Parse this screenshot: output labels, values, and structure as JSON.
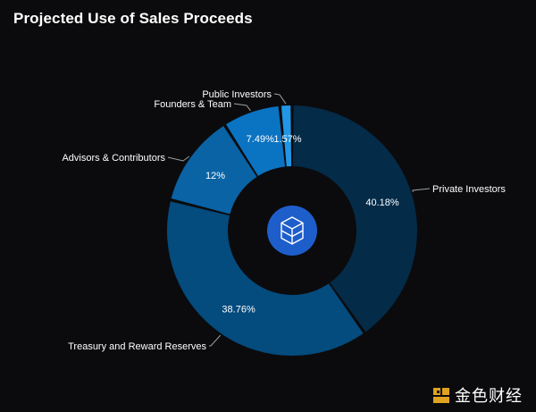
{
  "chart_data": {
    "type": "pie",
    "donut": true,
    "title": "Projected Use of Sales Proceeds",
    "start": "12 o'clock, clockwise",
    "slices": [
      {
        "label": "Private Investors",
        "value": 40.18,
        "value_label": "40.18%",
        "color": "#042b48"
      },
      {
        "label": "Treasury and Reward Reserves",
        "value": 38.76,
        "value_label": "38.76%",
        "color": "#044b7e"
      },
      {
        "label": "Advisors & Contributors",
        "value": 12,
        "value_label": "12%",
        "color": "#0963a5"
      },
      {
        "label": "Founders & Team",
        "value": 7.49,
        "value_label": "7.49%",
        "color": "#0a73c2"
      },
      {
        "label": "Public Investors",
        "value": 1.57,
        "value_label": "1.57%",
        "color": "#2196e6"
      }
    ]
  },
  "center_icon": "fantom-cube-logo-icon",
  "watermark": {
    "text": "金色财经",
    "icon": "jinse-logo-icon"
  }
}
